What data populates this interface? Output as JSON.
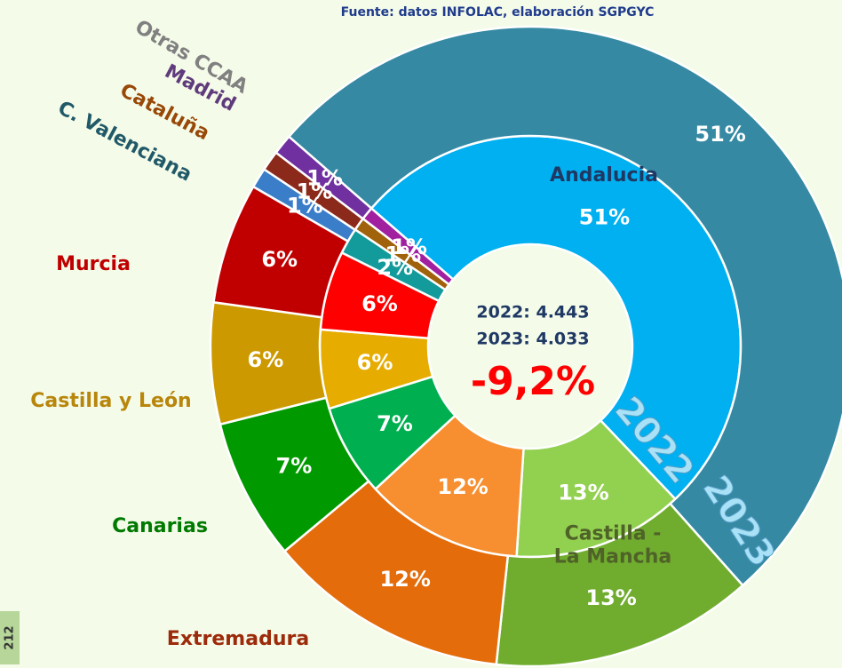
{
  "chart_data": {
    "type": "donut",
    "subtitle": "Fuente: datos INFOLAC, elaboración SGPGYC",
    "categories": [
      "Andalucia",
      "Castilla - La Mancha",
      "Extremadura",
      "Canarias",
      "Castilla y León",
      "Murcia",
      "C. Valenciana",
      "Cataluña",
      "Madrid",
      "Otras CCAA"
    ],
    "label_colors": [
      "#1f3864",
      "#4f6228",
      "#9c2b0b",
      "#007a00",
      "#b8860b",
      "#c00000",
      "#215968",
      "#984807",
      "#5f3b7b",
      "#808080"
    ],
    "series": [
      {
        "name": "2022",
        "colors": [
          "#00b0f0",
          "#92d050",
          "#f78f30",
          "#00b050",
          "#e6ac00",
          "#ff0000",
          "#139a9a",
          "#a0620a",
          "#a020a0",
          "#909090"
        ],
        "values": [
          51,
          13,
          12,
          7,
          6,
          6,
          2,
          1,
          1,
          null
        ],
        "value_labels": [
          "51%",
          "13%",
          "12%",
          "7%",
          "6%",
          "6%",
          "2%",
          "1%",
          "1%",
          null
        ]
      },
      {
        "name": "2023",
        "colors": [
          "#3589a3",
          "#70ad2f",
          "#e46c0a",
          "#009900",
          "#cc9a00",
          "#c00000",
          "#3a7dc9",
          "#8b2a1a",
          "#7030a0",
          "#909090"
        ],
        "values": [
          51,
          13,
          12,
          7,
          6,
          6,
          1,
          1,
          1,
          null
        ],
        "value_labels": [
          "51%",
          "13%",
          "12%",
          "7%",
          "6%",
          "6%",
          "1%",
          "1%",
          "1%",
          null
        ]
      }
    ],
    "center_labels": [
      "2022: 4.443",
      "2023: 4.033"
    ],
    "change_label": "-9,2%"
  },
  "page_number": "212"
}
